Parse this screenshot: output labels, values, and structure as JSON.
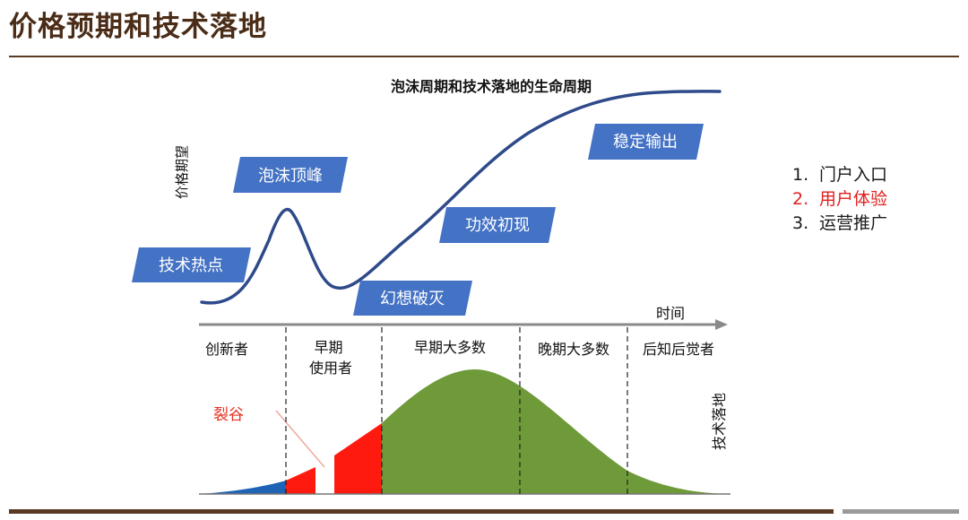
{
  "page": {
    "title": "价格预期和技术落地"
  },
  "diagram": {
    "title": "泡沫周期和技术落地的生命周期",
    "y_axis_label": "价格期望",
    "x_axis_label": "时间",
    "right_axis_label": "技术落地",
    "chasm_label": "裂谷",
    "hype_boxes": [
      "技术热点",
      "泡沫顶峰",
      "幻想破灭",
      "功效初现",
      "稳定输出"
    ],
    "adopter_segments": [
      "创新者",
      "早期\n使用者",
      "早期大多数",
      "晚期大多数",
      "后知后觉者"
    ]
  },
  "legend": {
    "items": [
      {
        "num": "1.",
        "label": "门户入口",
        "highlighted": false
      },
      {
        "num": "2.",
        "label": "用户体验",
        "highlighted": true
      },
      {
        "num": "3.",
        "label": "运营推广",
        "highlighted": false
      }
    ]
  },
  "colors": {
    "title_brown": "#4a2c17",
    "rule_brown": "#5b3a23",
    "hype_curve": "#2f4a8a",
    "hype_box_fill": "#4472c4",
    "innovators_fill": "#1f63b5",
    "early_adopters_fill": "#ff1a10",
    "majority_fill": "#6f9a3a",
    "chasm_text": "#e53020",
    "axis_grey": "#8a8a8a"
  }
}
